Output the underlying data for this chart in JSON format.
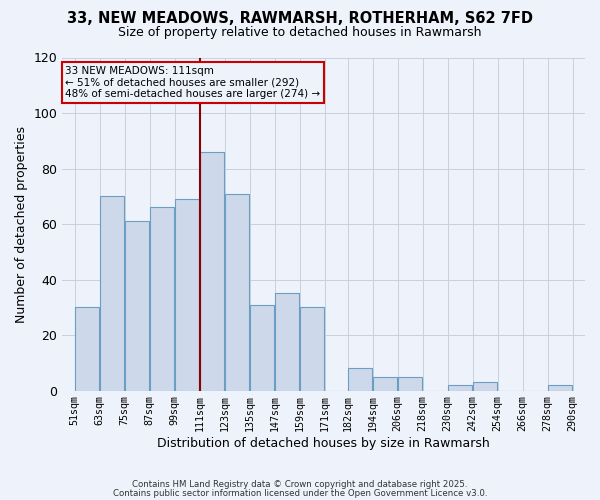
{
  "title": "33, NEW MEADOWS, RAWMARSH, ROTHERHAM, S62 7FD",
  "subtitle": "Size of property relative to detached houses in Rawmarsh",
  "xlabel": "Distribution of detached houses by size in Rawmarsh",
  "ylabel": "Number of detached properties",
  "bin_labels": [
    "51sqm",
    "63sqm",
    "75sqm",
    "87sqm",
    "99sqm",
    "111sqm",
    "123sqm",
    "135sqm",
    "147sqm",
    "159sqm",
    "171sqm",
    "182sqm",
    "194sqm",
    "206sqm",
    "218sqm",
    "230sqm",
    "242sqm",
    "254sqm",
    "266sqm",
    "278sqm",
    "290sqm"
  ],
  "bin_edges": [
    51,
    63,
    75,
    87,
    99,
    111,
    123,
    135,
    147,
    159,
    171,
    182,
    194,
    206,
    218,
    230,
    242,
    254,
    266,
    278,
    290
  ],
  "counts": [
    30,
    70,
    61,
    66,
    69,
    86,
    71,
    31,
    35,
    30,
    0,
    8,
    5,
    5,
    0,
    2,
    3,
    0,
    0,
    2
  ],
  "bar_facecolor": "#cdd9ea",
  "bar_edgecolor": "#6a9ec5",
  "background_color": "#eef2fa",
  "grid_color": "#c8d0de",
  "vline_x": 111,
  "vline_color": "#8b0000",
  "annotation_line1": "33 NEW MEADOWS: 111sqm",
  "annotation_line2": "← 51% of detached houses are smaller (292)",
  "annotation_line3": "48% of semi-detached houses are larger (274) →",
  "annotation_box_edgecolor": "#cc0000",
  "annotation_box_facecolor": "#eef2fa",
  "ylim": [
    0,
    120
  ],
  "yticks": [
    0,
    20,
    40,
    60,
    80,
    100,
    120
  ],
  "footer1": "Contains HM Land Registry data © Crown copyright and database right 2025.",
  "footer2": "Contains public sector information licensed under the Open Government Licence v3.0."
}
